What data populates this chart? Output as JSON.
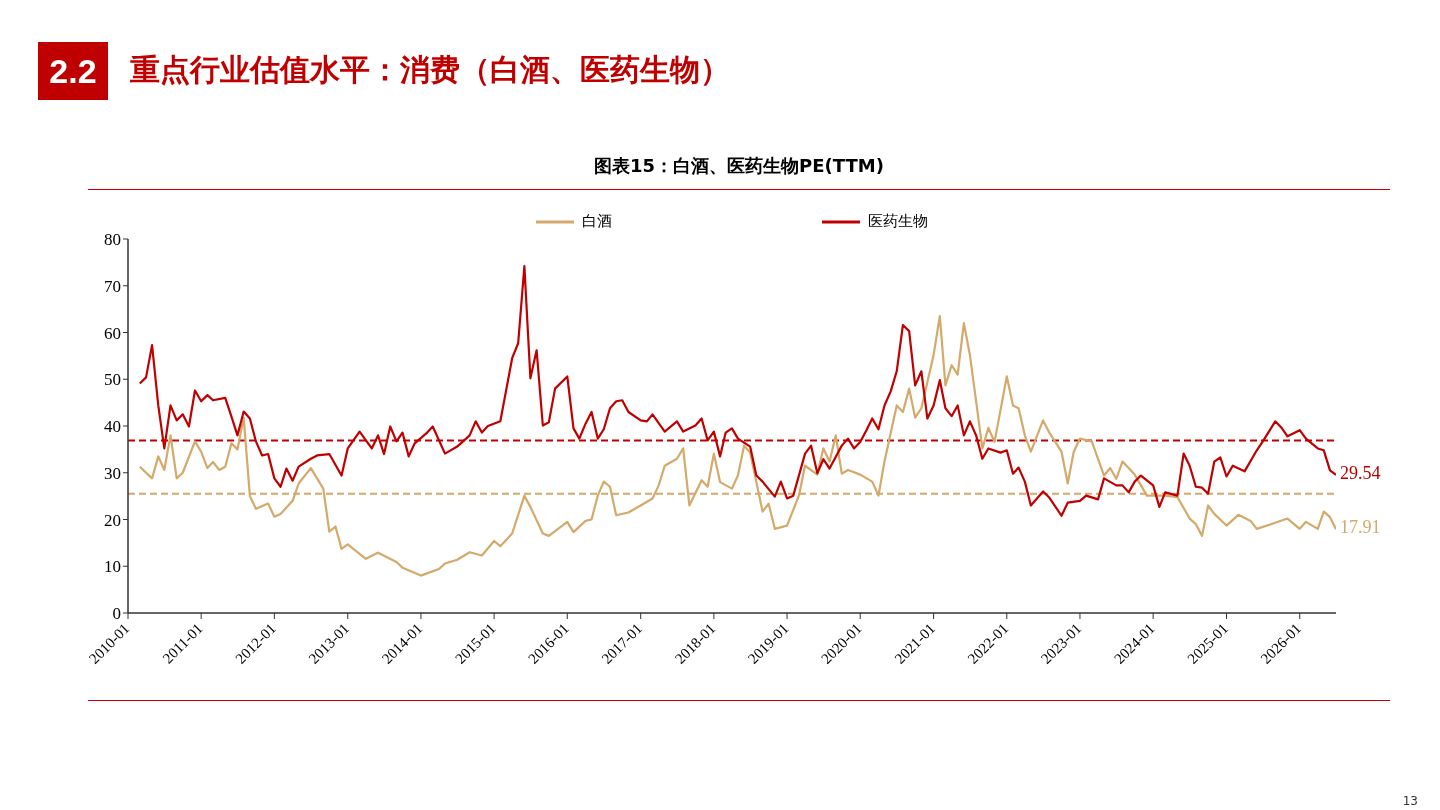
{
  "chart_data": {
    "type": "line",
    "title": "图表15：白酒、医药生物PE(TTM)",
    "annotations": [
      "2.2",
      "重点行业估值水平：消费（白酒、医药生物）",
      "13",
      {
        "text": "17.91",
        "x": "2026-07",
        "y": 17.91
      },
      {
        "text": "29.54",
        "x": "2026-07",
        "y": 29.54
      }
    ],
    "xlim": [
      "2010-01",
      "2026-07"
    ],
    "xticks": [
      "2010-01",
      "2011-01",
      "2012-01",
      "2013-01",
      "2014-01",
      "2015-01",
      "2016-01",
      "2017-01",
      "2018-01",
      "2019-01",
      "2020-01",
      "2021-01",
      "2022-01",
      "2023-01",
      "2024-01",
      "2025-01",
      "2026-01"
    ],
    "ylim": [
      0,
      80
    ],
    "yticks": [
      0,
      10,
      20,
      30,
      40,
      50,
      60,
      70,
      80
    ],
    "grid": false,
    "legend": "top",
    "marker": "none",
    "line_style": "solid",
    "ref_lines": [
      {
        "axis": "y",
        "value": 36.9,
        "color": "#c00000",
        "line_style": "dashed"
      },
      {
        "axis": "y",
        "value": 25.5,
        "color": "#d4a96a",
        "line_style": "dashed"
      }
    ],
    "series": [
      {
        "name": "白酒",
        "color": "#d4a96a",
        "x": [
          "2010-03",
          "2010-05",
          "2010-06",
          "2010-07",
          "2010-08",
          "2010-09",
          "2010-10",
          "2010-12",
          "2011-01",
          "2011-02",
          "2011-03",
          "2011-04",
          "2011-05",
          "2011-06",
          "2011-07",
          "2011-08",
          "2011-09",
          "2011-10",
          "2011-12",
          "2012-01",
          "2012-02",
          "2012-04",
          "2012-05",
          "2012-07",
          "2012-09",
          "2012-10",
          "2012-11",
          "2012-12",
          "2013-01",
          "2013-04",
          "2013-06",
          "2013-09",
          "2013-10",
          "2014-01",
          "2014-04",
          "2014-05",
          "2014-07",
          "2014-09",
          "2014-11",
          "2015-01",
          "2015-02",
          "2015-04",
          "2015-06",
          "2015-07",
          "2015-09",
          "2015-10",
          "2016-01",
          "2016-02",
          "2016-04",
          "2016-05",
          "2016-06",
          "2016-07",
          "2016-08",
          "2016-09",
          "2016-11",
          "2017-01",
          "2017-03",
          "2017-04",
          "2017-05",
          "2017-07",
          "2017-08",
          "2017-09",
          "2017-11",
          "2017-12",
          "2018-01",
          "2018-02",
          "2018-04",
          "2018-05",
          "2018-06",
          "2018-07",
          "2018-09",
          "2018-10",
          "2018-11",
          "2019-01",
          "2019-03",
          "2019-04",
          "2019-06",
          "2019-07",
          "2019-08",
          "2019-09",
          "2019-10",
          "2019-11",
          "2020-01",
          "2020-03",
          "2020-04",
          "2020-05",
          "2020-07",
          "2020-08",
          "2020-09",
          "2020-10",
          "2020-11",
          "2021-01",
          "2021-02",
          "2021-03",
          "2021-04",
          "2021-05",
          "2021-06",
          "2021-07",
          "2021-08",
          "2021-09",
          "2021-10",
          "2021-11",
          "2022-01",
          "2022-02",
          "2022-03",
          "2022-04",
          "2022-05",
          "2022-07",
          "2022-08",
          "2022-10",
          "2022-11",
          "2022-12",
          "2023-01",
          "2023-03",
          "2023-05",
          "2023-06",
          "2023-07",
          "2023-08",
          "2023-10",
          "2023-12",
          "2024-03",
          "2024-05",
          "2024-07",
          "2024-08",
          "2024-09",
          "2024-10",
          "2024-11",
          "2025-01",
          "2025-03",
          "2025-05",
          "2025-06",
          "2025-09",
          "2025-11",
          "2026-01",
          "2026-02",
          "2026-04",
          "2026-05",
          "2026-06",
          "2026-07"
        ],
        "values": [
          31.3,
          28.8,
          33.5,
          30.6,
          38,
          28.8,
          30,
          36.7,
          34.5,
          31,
          32.3,
          30.6,
          31.3,
          36.3,
          35,
          41.8,
          25,
          22.3,
          23.4,
          20.6,
          21.2,
          24,
          27.7,
          31,
          26.6,
          17.4,
          18.5,
          13.7,
          14.7,
          11.6,
          12.9,
          10.9,
          9.7,
          8,
          9.4,
          10.6,
          11.4,
          13,
          12.3,
          15.4,
          14.3,
          17,
          25.1,
          22.7,
          17,
          16.5,
          19.5,
          17.3,
          19.7,
          20,
          25.1,
          28.1,
          27,
          20.9,
          21.5,
          23,
          24.5,
          27.3,
          31.5,
          33,
          35.2,
          23,
          28.4,
          27,
          34.1,
          28,
          26.6,
          29.4,
          35.8,
          34.3,
          21.7,
          23.4,
          18,
          18.7,
          25.1,
          31.5,
          29.6,
          35.2,
          32.4,
          38,
          29.8,
          30.6,
          29.6,
          28.1,
          25.1,
          32.4,
          44.4,
          43,
          48,
          41.8,
          43.8,
          55.2,
          63.5,
          48.7,
          53,
          51,
          62,
          55.2,
          45.3,
          35.2,
          39.6,
          36.6,
          50.6,
          44.4,
          43.8,
          38,
          34.5,
          41.2,
          38.6,
          34.5,
          27.7,
          34.5,
          37.3,
          36.7,
          29.4,
          31,
          28.7,
          32.4,
          29.6,
          25.1,
          25.1,
          24.8,
          20.2,
          19,
          16.5,
          23,
          21.2,
          18.7,
          21,
          19.7,
          18,
          19.3,
          20.2,
          18,
          19.5,
          18,
          21.7,
          20.5,
          17.91
        ]
      },
      {
        "name": "医药生物",
        "color": "#c00000",
        "x": [
          "2010-03",
          "2010-04",
          "2010-05",
          "2010-06",
          "2010-07",
          "2010-08",
          "2010-09",
          "2010-10",
          "2010-11",
          "2010-12",
          "2011-01",
          "2011-02",
          "2011-03",
          "2011-05",
          "2011-06",
          "2011-07",
          "2011-08",
          "2011-09",
          "2011-10",
          "2011-11",
          "2011-12",
          "2012-01",
          "2012-02",
          "2012-03",
          "2012-04",
          "2012-05",
          "2012-07",
          "2012-08",
          "2012-10",
          "2012-12",
          "2013-01",
          "2013-03",
          "2013-05",
          "2013-06",
          "2013-07",
          "2013-08",
          "2013-09",
          "2013-10",
          "2013-11",
          "2013-12",
          "2014-02",
          "2014-03",
          "2014-05",
          "2014-07",
          "2014-09",
          "2014-10",
          "2014-11",
          "2014-12",
          "2015-02",
          "2015-03",
          "2015-04",
          "2015-05",
          "2015-06",
          "2015-07",
          "2015-08",
          "2015-09",
          "2015-10",
          "2015-11",
          "2016-01",
          "2016-02",
          "2016-03",
          "2016-04",
          "2016-05",
          "2016-06",
          "2016-07",
          "2016-08",
          "2016-09",
          "2016-10",
          "2016-11",
          "2017-01",
          "2017-02",
          "2017-03",
          "2017-05",
          "2017-07",
          "2017-08",
          "2017-10",
          "2017-11",
          "2017-12",
          "2018-01",
          "2018-02",
          "2018-03",
          "2018-04",
          "2018-05",
          "2018-07",
          "2018-08",
          "2018-09",
          "2018-11",
          "2018-12",
          "2019-01",
          "2019-02",
          "2019-04",
          "2019-05",
          "2019-06",
          "2019-07",
          "2019-08",
          "2019-10",
          "2019-11",
          "2019-12",
          "2020-01",
          "2020-02",
          "2020-03",
          "2020-04",
          "2020-05",
          "2020-06",
          "2020-07",
          "2020-08",
          "2020-09",
          "2020-10",
          "2020-11",
          "2020-12",
          "2021-01",
          "2021-02",
          "2021-03",
          "2021-04",
          "2021-05",
          "2021-06",
          "2021-07",
          "2021-08",
          "2021-09",
          "2021-10",
          "2021-12",
          "2022-01",
          "2022-02",
          "2022-03",
          "2022-04",
          "2022-05",
          "2022-07",
          "2022-08",
          "2022-10",
          "2022-11",
          "2023-01",
          "2023-02",
          "2023-04",
          "2023-05",
          "2023-07",
          "2023-08",
          "2023-09",
          "2023-10",
          "2023-11",
          "2024-01",
          "2024-02",
          "2024-03",
          "2024-05",
          "2024-06",
          "2024-07",
          "2024-08",
          "2024-09",
          "2024-10",
          "2024-11",
          "2024-12",
          "2025-01",
          "2025-02",
          "2025-04",
          "2025-06",
          "2025-07",
          "2025-09",
          "2025-10",
          "2025-11",
          "2026-01",
          "2026-02",
          "2026-04",
          "2026-05",
          "2026-06",
          "2026-07"
        ],
        "values": [
          49.1,
          50.4,
          57.3,
          44.4,
          35.2,
          44.4,
          41.2,
          42.5,
          39.9,
          47.6,
          45.3,
          46.6,
          45.5,
          46,
          42,
          38,
          43.1,
          41.6,
          36.7,
          33.7,
          34,
          28.8,
          27,
          30.9,
          28.3,
          31.3,
          33,
          33.7,
          34,
          29.4,
          35.2,
          38.8,
          35.2,
          38,
          34,
          39.9,
          36.7,
          38.6,
          33.5,
          36.3,
          38.6,
          39.9,
          34.1,
          35.6,
          38,
          41,
          38.6,
          40,
          41,
          47.4,
          54.5,
          57.7,
          74.2,
          50.2,
          56.2,
          40.1,
          40.8,
          48,
          50.6,
          39.5,
          37.3,
          40.5,
          43,
          37.3,
          39.3,
          43.8,
          45.3,
          45.5,
          43,
          41.2,
          41,
          42.5,
          38.8,
          41,
          38.8,
          40.1,
          41.6,
          36.9,
          38.8,
          33.5,
          38.6,
          39.5,
          37.3,
          35.6,
          29.4,
          28.1,
          24.9,
          28.1,
          24.5,
          25.1,
          34.1,
          35.8,
          29.9,
          32.9,
          30.9,
          35.8,
          37.3,
          35.2,
          36.6,
          39.1,
          41.6,
          39.3,
          44.4,
          47.4,
          51.7,
          61.6,
          60.3,
          48.7,
          51.7,
          41.6,
          44.4,
          49.8,
          43.8,
          42.1,
          44.4,
          38,
          41,
          38,
          33,
          35.2,
          34.3,
          34.8,
          29.8,
          31.1,
          28.1,
          23,
          26,
          24.7,
          20.8,
          23.6,
          24,
          25.1,
          24.3,
          28.8,
          27.3,
          27.3,
          25.8,
          28.1,
          29.4,
          27.3,
          22.7,
          25.8,
          25.1,
          34.1,
          31.5,
          27,
          26.8,
          25.5,
          32.4,
          33.3,
          29.2,
          31.5,
          30.3,
          34.8,
          36.7,
          41,
          39.7,
          37.8,
          39.1,
          37.3,
          35.2,
          34.8,
          30.5,
          29.54
        ]
      }
    ]
  }
}
